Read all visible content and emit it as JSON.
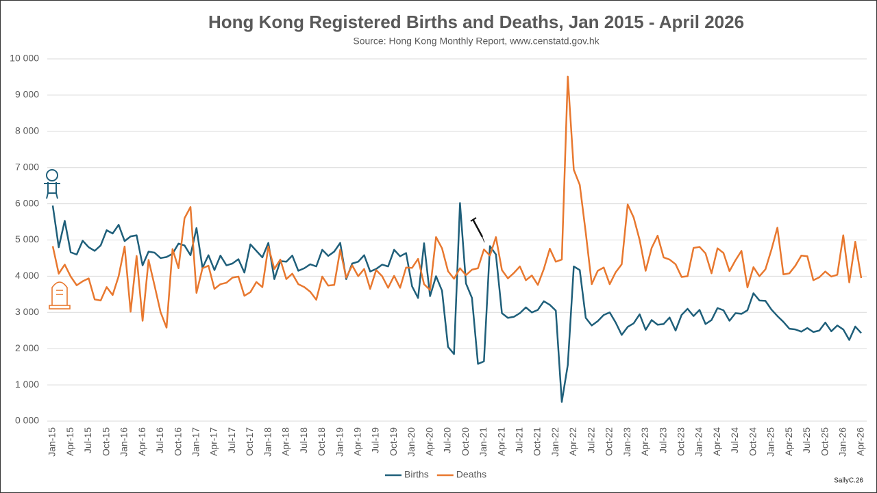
{
  "chart_data": {
    "type": "line",
    "title": "Hong Kong Registered Births and Deaths, Jan 2015 - April 2026",
    "subtitle": "Source: Hong Kong Monthly Report, www.censtatd.gov.hk",
    "credit": "SallyC.26",
    "categories": [
      "Jan-15",
      null,
      null,
      "Apr-15",
      null,
      null,
      "Jul-15",
      null,
      null,
      "Oct-15",
      null,
      null,
      "Jan-16",
      null,
      null,
      "Apr-16",
      null,
      null,
      "Jul-16",
      null,
      null,
      "Oct-16",
      null,
      null,
      "Jan-17",
      null,
      null,
      "Apr-17",
      null,
      null,
      "Jul-17",
      null,
      null,
      "Oct-17",
      null,
      null,
      "Jan-18",
      null,
      null,
      "Apr-18",
      null,
      null,
      "Jul-18",
      null,
      null,
      "Oct-18",
      null,
      null,
      "Jan-19",
      null,
      null,
      "Apr-19",
      null,
      null,
      "Jul-19",
      null,
      null,
      "Oct-19",
      null,
      null,
      "Jan-20",
      null,
      null,
      "Apr-20",
      null,
      null,
      "Jul-20",
      null,
      null,
      "Oct-20",
      null,
      null,
      "Jan-21",
      null,
      null,
      "Apr-21",
      null,
      null,
      "Jul-21",
      null,
      null,
      "Oct-21",
      null,
      null,
      "Jan-22",
      null,
      null,
      "Apr-22",
      null,
      null,
      "Jul-22",
      null,
      null,
      "Oct-22",
      null,
      null,
      "Jan-23",
      null,
      null,
      "Apr-23",
      null,
      null,
      "Jul-23",
      null,
      null,
      "Oct-23",
      null,
      null,
      "Jan-24",
      null,
      null,
      "Apr-24",
      null,
      null,
      "Jul-24",
      null,
      null,
      "Oct-24",
      null,
      null,
      "Jan-25",
      null,
      null,
      "Apr-25",
      null,
      null,
      "Jul-25",
      null,
      null,
      "Oct-25",
      null,
      null,
      "Jan-26",
      null,
      null,
      "Apr-26"
    ],
    "series": [
      {
        "name": "Births",
        "color": "#1f5f7a",
        "values": [
          5950,
          4800,
          5530,
          4660,
          4600,
          4980,
          4800,
          4700,
          4850,
          5270,
          5180,
          5420,
          4970,
          5100,
          5130,
          4300,
          4680,
          4650,
          4500,
          4530,
          4620,
          4900,
          4850,
          4580,
          5330,
          4230,
          4580,
          4170,
          4570,
          4300,
          4350,
          4470,
          4100,
          4880,
          4700,
          4520,
          4920,
          3920,
          4420,
          4400,
          4570,
          4150,
          4220,
          4330,
          4270,
          4730,
          4560,
          4680,
          4920,
          3920,
          4350,
          4400,
          4580,
          4130,
          4200,
          4320,
          4270,
          4730,
          4550,
          4640,
          3720,
          3400,
          4910,
          3450,
          4000,
          3600,
          2050,
          1850,
          6020,
          3800,
          3400,
          1580,
          1650,
          4830,
          4600,
          2980,
          2850,
          2880,
          2980,
          3140,
          3000,
          3070,
          3310,
          3210,
          3050,
          530,
          1550,
          4270,
          4170,
          2850,
          2640,
          2760,
          2930,
          3000,
          2720,
          2380,
          2600,
          2700,
          2950,
          2520,
          2790,
          2660,
          2680,
          2860,
          2500,
          2930,
          3100,
          2900,
          3070,
          2680,
          2790,
          3120,
          3060,
          2770,
          2980,
          2960,
          3060,
          3530,
          3330,
          3320,
          3080,
          2900,
          2740,
          2550,
          2530,
          2470,
          2570,
          2460,
          2500,
          2720,
          2480,
          2640,
          2530,
          2240,
          2610,
          2430
        ]
      },
      {
        "name": "Deaths",
        "color": "#e8782f",
        "values": [
          4830,
          4070,
          4320,
          3990,
          3750,
          3860,
          3940,
          3360,
          3330,
          3700,
          3480,
          4000,
          4820,
          3020,
          4560,
          2770,
          4450,
          3740,
          3010,
          2580,
          4750,
          4220,
          5600,
          5910,
          3540,
          4220,
          4290,
          3650,
          3780,
          3820,
          3960,
          3990,
          3460,
          3560,
          3840,
          3700,
          4820,
          4200,
          4460,
          3920,
          4070,
          3780,
          3700,
          3570,
          3350,
          3990,
          3740,
          3760,
          4730,
          3960,
          4300,
          4000,
          4200,
          3650,
          4170,
          4000,
          3680,
          4010,
          3680,
          4240,
          4230,
          4480,
          3780,
          3620,
          5080,
          4770,
          4140,
          3930,
          4220,
          4030,
          4180,
          4220,
          4740,
          4570,
          5080,
          4170,
          3940,
          4090,
          4270,
          3890,
          4020,
          3760,
          4200,
          4760,
          4400,
          4460,
          9510,
          6940,
          6520,
          5200,
          3780,
          4150,
          4240,
          3780,
          4110,
          4330,
          5980,
          5620,
          5000,
          4150,
          4780,
          5120,
          4520,
          4460,
          4330,
          3980,
          4000,
          4780,
          4810,
          4630,
          4080,
          4770,
          4640,
          4140,
          4440,
          4700,
          3690,
          4250,
          4000,
          4190,
          4730,
          5340,
          4050,
          4080,
          4290,
          4570,
          4550,
          3890,
          3970,
          4130,
          3990,
          4040,
          5130,
          3830,
          4950,
          3950
        ]
      }
    ],
    "ylim": [
      0,
      10000
    ],
    "yticks": [
      {
        "value": 0,
        "label": "0 000"
      },
      {
        "value": 1000,
        "label": "1 000"
      },
      {
        "value": 2000,
        "label": "2 000"
      },
      {
        "value": 3000,
        "label": "3 000"
      },
      {
        "value": 4000,
        "label": "4 000"
      },
      {
        "value": 5000,
        "label": "5 000"
      },
      {
        "value": 6000,
        "label": "6 000"
      },
      {
        "value": 7000,
        "label": "7 000"
      },
      {
        "value": 8000,
        "label": "8 000"
      },
      {
        "value": 9000,
        "label": "9 000"
      },
      {
        "value": 10000,
        "label": "10 000"
      }
    ],
    "grid": true,
    "legend": "bottom"
  }
}
